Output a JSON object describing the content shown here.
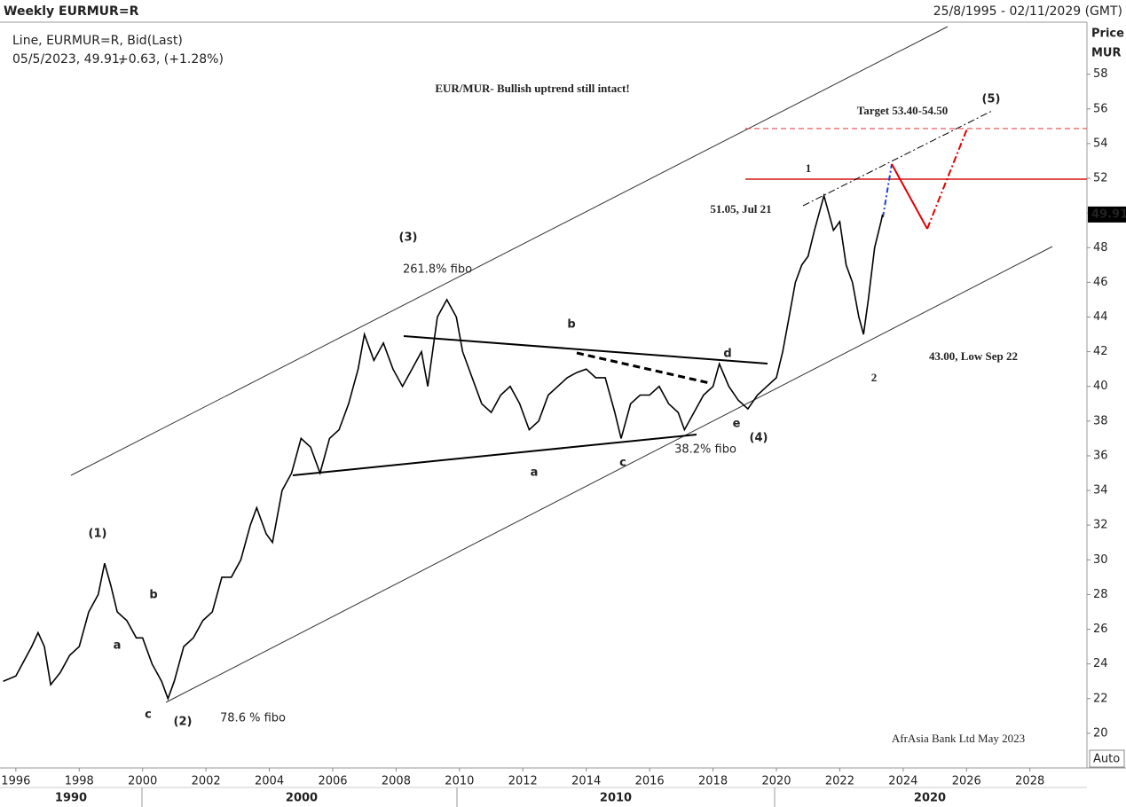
{
  "header": {
    "title": "Weekly EURMUR=R",
    "range": "25/8/1995 - 02/11/2029 (GMT)",
    "series_info": "Line, EURMUR=R, Bid(Last)",
    "last_info": "05/5/2023, 49.91,",
    "change": "+0.63, (+1.28%)"
  },
  "chart_data": {
    "type": "line",
    "color": "#000000",
    "y_axis_title": "Price",
    "y_axis_unit": "MUR",
    "scale_mode": "Auto",
    "last_value": 49.91,
    "xlim": [
      1995.5,
      2029.8
    ],
    "ylim": [
      18,
      61
    ],
    "xticks": [
      1996,
      1998,
      2000,
      2002,
      2004,
      2006,
      2008,
      2010,
      2012,
      2014,
      2016,
      2018,
      2020,
      2022,
      2024,
      2026,
      2028
    ],
    "yticks": [
      20,
      22,
      24,
      26,
      28,
      30,
      32,
      34,
      36,
      38,
      40,
      42,
      44,
      46,
      48,
      50,
      52,
      54,
      56,
      58
    ],
    "x_axis_decades": [
      "1990",
      "2000",
      "2010",
      "2020"
    ],
    "annotations": [
      "EUR/MUR- Bullish uptrend still intact!",
      "Target 53.40-54.50",
      "(5)",
      "1",
      "51.05, Jul 21",
      "(3)",
      "261.8% fibo",
      "b",
      "d",
      "43.00, Low Sep 22",
      "2",
      "e",
      "(4)",
      "38.2% fibo",
      "c",
      "a",
      "(1)",
      "b",
      "a",
      "c",
      "(2)",
      "78.6 % fibo",
      "AfrAsia Bank Ltd May 2023"
    ],
    "x": [
      1995.6,
      1996.0,
      1996.5,
      1996.7,
      1996.9,
      1997.1,
      1997.4,
      1997.7,
      1998.0,
      1998.3,
      1998.6,
      1998.8,
      1999.0,
      1999.2,
      1999.5,
      1999.8,
      2000.0,
      2000.3,
      2000.6,
      2000.8,
      2001.0,
      2001.3,
      2001.6,
      2001.9,
      2002.2,
      2002.5,
      2002.8,
      2003.1,
      2003.4,
      2003.6,
      2003.9,
      2004.1,
      2004.4,
      2004.7,
      2005.0,
      2005.3,
      2005.6,
      2005.9,
      2006.2,
      2006.5,
      2006.8,
      2007.0,
      2007.3,
      2007.6,
      2007.9,
      2008.2,
      2008.5,
      2008.8,
      2009.0,
      2009.3,
      2009.6,
      2009.9,
      2010.1,
      2010.4,
      2010.7,
      2011.0,
      2011.3,
      2011.6,
      2011.9,
      2012.2,
      2012.5,
      2012.8,
      2013.1,
      2013.4,
      2013.7,
      2014.0,
      2014.3,
      2014.6,
      2014.9,
      2015.1,
      2015.4,
      2015.7,
      2016.0,
      2016.3,
      2016.6,
      2016.9,
      2017.1,
      2017.4,
      2017.7,
      2018.0,
      2018.2,
      2018.5,
      2018.8,
      2019.1,
      2019.4,
      2019.7,
      2020.0,
      2020.2,
      2020.4,
      2020.6,
      2020.8,
      2021.0,
      2021.2,
      2021.5,
      2021.8,
      2022.0,
      2022.2,
      2022.4,
      2022.6,
      2022.75,
      2022.9,
      2023.1,
      2023.3,
      2023.35
    ],
    "values": [
      23,
      23.3,
      25,
      25.8,
      25,
      22.8,
      23.5,
      24.5,
      25,
      27,
      28,
      29.8,
      28.5,
      27,
      26.5,
      25.5,
      25.5,
      24,
      23,
      22,
      23,
      25,
      25.5,
      26.5,
      27,
      29,
      29,
      30,
      32,
      33,
      31.5,
      31,
      34,
      35,
      37,
      36.5,
      35,
      37,
      37.5,
      39,
      41,
      43,
      41.5,
      42.5,
      41,
      40,
      41,
      42,
      40,
      44,
      45,
      44,
      42,
      40.5,
      39,
      38.5,
      39.5,
      40,
      39,
      37.5,
      38,
      39.5,
      40,
      40.5,
      40.8,
      41,
      40.5,
      40.5,
      38.5,
      37,
      39,
      39.5,
      39.5,
      40,
      39,
      38.5,
      37.5,
      38.5,
      39.5,
      40,
      41.3,
      40,
      39.2,
      38.7,
      39.5,
      40,
      40.5,
      42,
      44,
      46,
      47,
      47.5,
      49,
      51,
      49,
      49.5,
      47,
      46,
      44,
      43,
      45,
      48,
      49.5,
      49.91
    ]
  }
}
